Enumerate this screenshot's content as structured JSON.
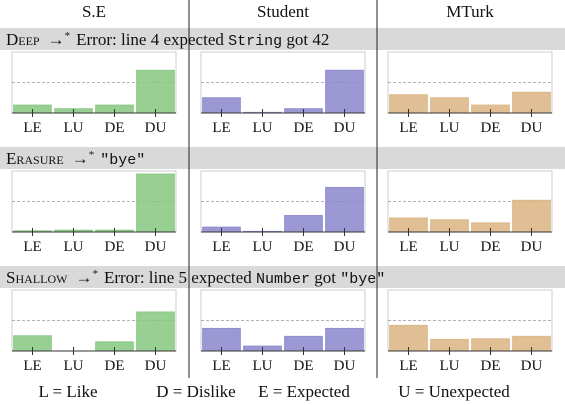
{
  "columns": [
    "S.E",
    "Student",
    "MTurk"
  ],
  "rows": [
    {
      "name": "Deep",
      "arrow": "→",
      "star": "*",
      "result": [
        {
          "text": "Error: line 4 expected ",
          "mono": false
        },
        {
          "text": "String",
          "mono": true
        },
        {
          "text": " got 42",
          "mono": false
        }
      ]
    },
    {
      "name": "Erasure",
      "arrow": "→",
      "star": "*",
      "result": [
        {
          "text": "\"bye\"",
          "mono": true
        }
      ]
    },
    {
      "name": "Shallow",
      "arrow": "→",
      "star": "*",
      "result": [
        {
          "text": "Error: line 5 expected ",
          "mono": false
        },
        {
          "text": "Number",
          "mono": true
        },
        {
          "text": " got ",
          "mono": false
        },
        {
          "text": "\"bye\"",
          "mono": true
        }
      ]
    }
  ],
  "legend": [
    "L = Like",
    "D = Dislike",
    "E = Expected",
    "U = Unexpected"
  ],
  "chart_data": [
    {
      "type": "bar",
      "categories": [
        "LE",
        "LU",
        "DE",
        "DU"
      ],
      "values": [
        0.13,
        0.07,
        0.13,
        0.7
      ],
      "color": "#86c77f",
      "ylim": [
        0,
        1
      ],
      "ref_line": 0.5
    },
    {
      "type": "bar",
      "categories": [
        "LE",
        "LU",
        "DE",
        "DU"
      ],
      "values": [
        0.25,
        0.01,
        0.07,
        0.7
      ],
      "color": "#8a86cc",
      "ylim": [
        0,
        1
      ],
      "ref_line": 0.5
    },
    {
      "type": "bar",
      "categories": [
        "LE",
        "LU",
        "DE",
        "DU"
      ],
      "values": [
        0.3,
        0.25,
        0.13,
        0.34
      ],
      "color": "#dbb482",
      "ylim": [
        0,
        1
      ],
      "ref_line": 0.5
    },
    {
      "type": "bar",
      "categories": [
        "LE",
        "LU",
        "DE",
        "DU"
      ],
      "values": [
        0.02,
        0.03,
        0.03,
        0.95
      ],
      "color": "#86c77f",
      "ylim": [
        0,
        1
      ],
      "ref_line": 0.5
    },
    {
      "type": "bar",
      "categories": [
        "LE",
        "LU",
        "DE",
        "DU"
      ],
      "values": [
        0.08,
        0.01,
        0.27,
        0.73
      ],
      "color": "#8a86cc",
      "ylim": [
        0,
        1
      ],
      "ref_line": 0.5
    },
    {
      "type": "bar",
      "categories": [
        "LE",
        "LU",
        "DE",
        "DU"
      ],
      "values": [
        0.23,
        0.2,
        0.15,
        0.52
      ],
      "color": "#dbb482",
      "ylim": [
        0,
        1
      ],
      "ref_line": 0.5
    },
    {
      "type": "bar",
      "categories": [
        "LE",
        "LU",
        "DE",
        "DU"
      ],
      "values": [
        0.25,
        0.0,
        0.15,
        0.64
      ],
      "color": "#86c77f",
      "ylim": [
        0,
        1
      ],
      "ref_line": 0.5
    },
    {
      "type": "bar",
      "categories": [
        "LE",
        "LU",
        "DE",
        "DU"
      ],
      "values": [
        0.37,
        0.08,
        0.24,
        0.37
      ],
      "color": "#8a86cc",
      "ylim": [
        0,
        1
      ],
      "ref_line": 0.5
    },
    {
      "type": "bar",
      "categories": [
        "LE",
        "LU",
        "DE",
        "DU"
      ],
      "values": [
        0.42,
        0.19,
        0.2,
        0.24
      ],
      "color": "#dbb482",
      "ylim": [
        0,
        1
      ],
      "ref_line": 0.5
    }
  ]
}
